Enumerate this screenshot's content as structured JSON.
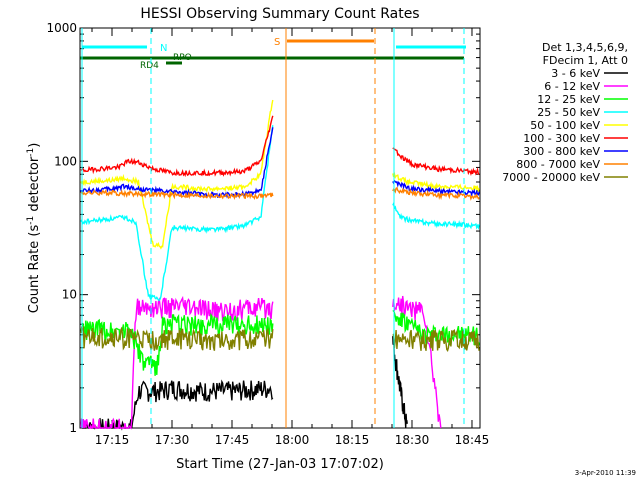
{
  "chart_data": {
    "type": "line",
    "title": "HESSI Observing Summary Count Rates",
    "xlabel": "Start Time (27-Jan-03 17:07:02)",
    "ylabel_prefix": "Count Rate (s",
    "ylabel_sup": "-1",
    "ylabel_mid": " detector",
    "ylabel_sup2": "-1",
    "ylabel_suffix": ")",
    "yscale": "log",
    "ylim": [
      1,
      1000
    ],
    "xlim_minutes": [
      17.1167,
      18.7834
    ],
    "x_ticks": [
      {
        "label": "17:15",
        "t": 17.25
      },
      {
        "label": "17:30",
        "t": 17.5
      },
      {
        "label": "17:45",
        "t": 17.75
      },
      {
        "label": "18:00",
        "t": 18.0
      },
      {
        "label": "18:15",
        "t": 18.25
      },
      {
        "label": "18:30",
        "t": 18.5
      },
      {
        "label": "18:45",
        "t": 18.75
      }
    ],
    "y_ticks": [
      {
        "label": "1",
        "v": 1
      },
      {
        "label": "10",
        "v": 10
      },
      {
        "label": "100",
        "v": 100
      },
      {
        "label": "1000",
        "v": 1000
      }
    ],
    "legend_header": [
      "Det 1,3,4,5,6,9,",
      "FDecim 1, Att 0"
    ],
    "series": [
      {
        "name": "3 - 6 keV",
        "color": "#000000",
        "seg1": [
          [
            17.12,
            1.0
          ],
          [
            17.33,
            1.0
          ],
          [
            17.36,
            1.9
          ],
          [
            17.45,
            1.9
          ],
          [
            17.5,
            2.0
          ],
          [
            17.62,
            1.9
          ],
          [
            17.75,
            1.9
          ],
          [
            17.92,
            2.0
          ]
        ],
        "seg2": [
          [
            18.42,
            4.5
          ],
          [
            18.45,
            2.0
          ],
          [
            18.48,
            1.0
          ]
        ]
      },
      {
        "name": "6 - 12 keV",
        "color": "#ff00ff",
        "seg1": [
          [
            17.12,
            1.0
          ],
          [
            17.33,
            1.0
          ],
          [
            17.35,
            8.0
          ],
          [
            17.45,
            8.0
          ],
          [
            17.55,
            8.0
          ],
          [
            17.7,
            7.5
          ],
          [
            17.85,
            8.0
          ],
          [
            17.92,
            8.0
          ]
        ],
        "seg2": [
          [
            18.42,
            9.0
          ],
          [
            18.48,
            8.0
          ],
          [
            18.55,
            7.5
          ],
          [
            18.62,
            1.0
          ]
        ]
      },
      {
        "name": "12 - 25 keV",
        "color": "#00ff00",
        "seg1": [
          [
            17.12,
            5.5
          ],
          [
            17.33,
            5.5
          ],
          [
            17.38,
            3.0
          ],
          [
            17.44,
            3.0
          ],
          [
            17.46,
            6.0
          ],
          [
            17.6,
            6.0
          ],
          [
            17.75,
            6.0
          ],
          [
            17.92,
            6.0
          ]
        ],
        "seg2": [
          [
            18.42,
            7.0
          ],
          [
            18.48,
            6.0
          ],
          [
            18.55,
            5.0
          ],
          [
            18.78,
            5.0
          ]
        ]
      },
      {
        "name": "25 - 50 keV",
        "color": "#00ffff",
        "seg1": [
          [
            17.12,
            35
          ],
          [
            17.25,
            37
          ],
          [
            17.3,
            38
          ],
          [
            17.35,
            35
          ],
          [
            17.4,
            10
          ],
          [
            17.45,
            9
          ],
          [
            17.5,
            32
          ],
          [
            17.6,
            31
          ],
          [
            17.7,
            31
          ],
          [
            17.8,
            33
          ],
          [
            17.87,
            38
          ],
          [
            17.92,
            190
          ]
        ],
        "seg2": [
          [
            18.42,
            48
          ],
          [
            18.45,
            38
          ],
          [
            18.5,
            36
          ],
          [
            18.6,
            34
          ],
          [
            18.78,
            33
          ]
        ]
      },
      {
        "name": "50 - 100 keV",
        "color": "#ffff00",
        "seg1": [
          [
            17.12,
            70
          ],
          [
            17.25,
            72
          ],
          [
            17.3,
            75
          ],
          [
            17.36,
            70
          ],
          [
            17.42,
            24
          ],
          [
            17.46,
            23
          ],
          [
            17.5,
            65
          ],
          [
            17.65,
            62
          ],
          [
            17.8,
            64
          ],
          [
            17.87,
            80
          ],
          [
            17.92,
            300
          ]
        ],
        "seg2": [
          [
            18.42,
            80
          ],
          [
            18.48,
            70
          ],
          [
            18.6,
            65
          ],
          [
            18.78,
            63
          ]
        ]
      },
      {
        "name": "100 - 300 keV",
        "color": "#ff0000",
        "seg1": [
          [
            17.12,
            85
          ],
          [
            17.2,
            88
          ],
          [
            17.27,
            90
          ],
          [
            17.32,
            100
          ],
          [
            17.36,
            98
          ],
          [
            17.42,
            88
          ],
          [
            17.5,
            82
          ],
          [
            17.6,
            82
          ],
          [
            17.7,
            82
          ],
          [
            17.8,
            84
          ],
          [
            17.87,
            100
          ],
          [
            17.92,
            215
          ]
        ],
        "seg2": [
          [
            18.42,
            130
          ],
          [
            18.45,
            110
          ],
          [
            18.5,
            95
          ],
          [
            18.6,
            88
          ],
          [
            18.78,
            83
          ]
        ]
      },
      {
        "name": "300 - 800 keV",
        "color": "#0000ff",
        "seg1": [
          [
            17.12,
            60
          ],
          [
            17.25,
            62
          ],
          [
            17.3,
            65
          ],
          [
            17.36,
            62
          ],
          [
            17.45,
            60
          ],
          [
            17.55,
            58
          ],
          [
            17.7,
            56
          ],
          [
            17.8,
            57
          ],
          [
            17.87,
            60
          ],
          [
            17.92,
            180
          ]
        ],
        "seg2": [
          [
            18.42,
            70
          ],
          [
            18.5,
            62
          ],
          [
            18.6,
            60
          ],
          [
            18.78,
            58
          ]
        ]
      },
      {
        "name": "800 - 7000 keV",
        "color": "#ff8000",
        "seg1": [
          [
            17.12,
            58
          ],
          [
            17.25,
            58
          ],
          [
            17.36,
            57
          ],
          [
            17.5,
            56
          ],
          [
            17.7,
            55
          ],
          [
            17.85,
            55
          ],
          [
            17.92,
            56
          ]
        ],
        "seg2": [
          [
            18.42,
            62
          ],
          [
            18.5,
            58
          ],
          [
            18.6,
            56
          ],
          [
            18.78,
            54
          ]
        ]
      },
      {
        "name": "7000 - 20000 keV",
        "color": "#808000",
        "seg1": [
          [
            17.12,
            4.8
          ],
          [
            17.33,
            4.8
          ],
          [
            17.4,
            4.5
          ],
          [
            17.5,
            4.7
          ],
          [
            17.7,
            4.6
          ],
          [
            17.92,
            4.7
          ]
        ],
        "seg2": [
          [
            18.42,
            4.8
          ],
          [
            18.5,
            4.6
          ],
          [
            18.78,
            4.6
          ]
        ]
      }
    ],
    "annotations": {
      "N": {
        "label": "N",
        "color": "#00ffff"
      },
      "S": {
        "label": "S",
        "color": "#ff8000"
      },
      "RD4": {
        "label": "RD4",
        "color": "#006400"
      },
      "RPO": {
        "label": "RPO",
        "color": "#006400"
      }
    },
    "footer_date": "3-Apr-2010 11:39"
  }
}
